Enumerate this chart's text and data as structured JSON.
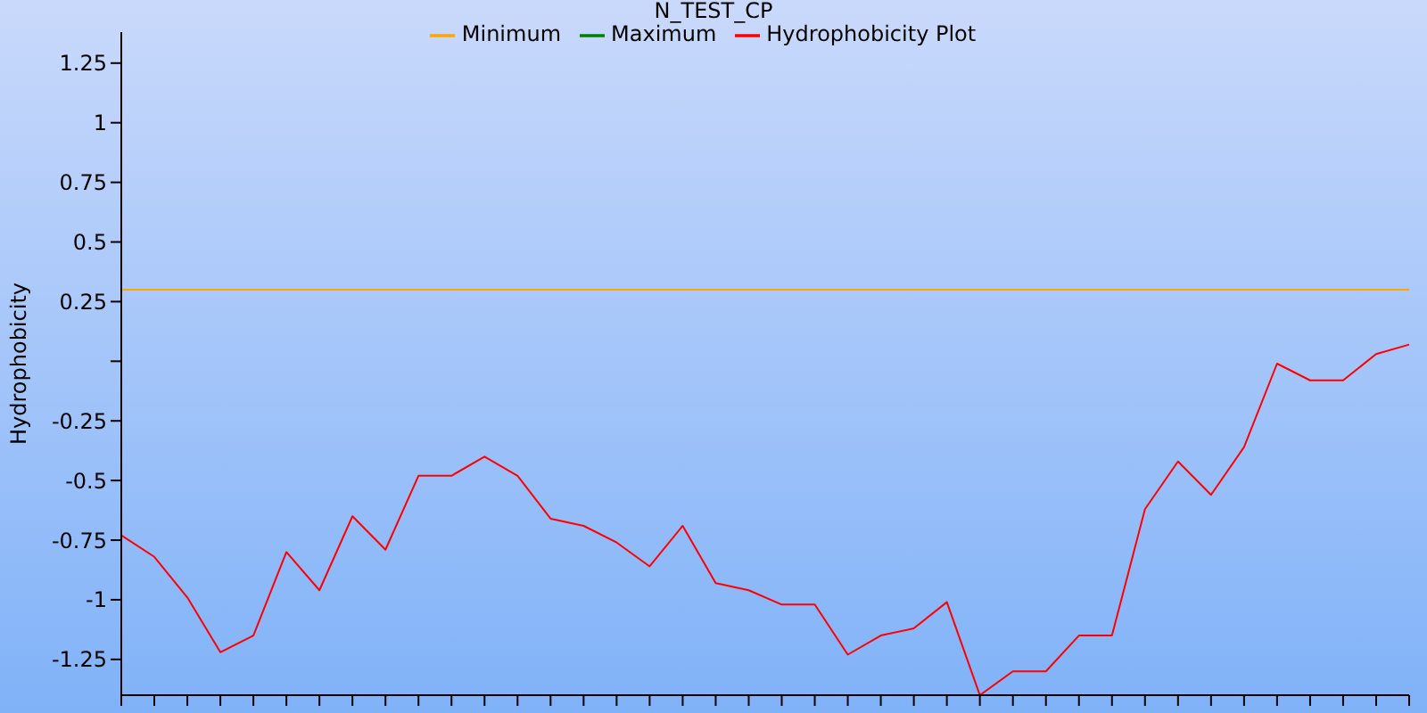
{
  "chart_data": {
    "type": "line",
    "title": "N_TEST_CP",
    "ylabel": "Hydrophobicity",
    "categories": [
      null,
      null,
      null,
      null,
      null,
      null,
      null,
      null,
      null,
      null,
      null,
      null,
      null,
      null,
      null,
      null,
      null,
      null,
      null,
      null,
      null,
      null,
      null,
      null,
      null,
      null,
      null,
      null,
      null,
      null,
      null,
      null,
      null,
      null,
      null,
      null,
      null,
      null,
      null,
      null
    ],
    "series": [
      {
        "name": "Minimum",
        "color": "#ffa500",
        "values": [
          0.3,
          0.3,
          0.3,
          0.3,
          0.3,
          0.3,
          0.3,
          0.3,
          0.3,
          0.3,
          0.3,
          0.3,
          0.3,
          0.3,
          0.3,
          0.3,
          0.3,
          0.3,
          0.3,
          0.3,
          0.3,
          0.3,
          0.3,
          0.3,
          0.3,
          0.3,
          0.3,
          0.3,
          0.3,
          0.3,
          0.3,
          0.3,
          0.3,
          0.3,
          0.3,
          0.3,
          0.3,
          0.3,
          0.3,
          0.3
        ]
      },
      {
        "name": "Maximum",
        "color": "#008000",
        "values": [
          null,
          null,
          null,
          null,
          null,
          null,
          null,
          null,
          null,
          null,
          null,
          null,
          null,
          null,
          null,
          null,
          null,
          null,
          null,
          null,
          null,
          null,
          null,
          null,
          null,
          null,
          null,
          null,
          null,
          null,
          null,
          null,
          null,
          null,
          null,
          null,
          null,
          null,
          null,
          null
        ]
      },
      {
        "name": "Hydrophobicity Plot",
        "color": "#ff0000",
        "values": [
          -0.73,
          -0.82,
          -0.99,
          -1.22,
          -1.15,
          -0.8,
          -0.96,
          -0.65,
          -0.79,
          -0.48,
          -0.48,
          -0.4,
          -0.48,
          -0.66,
          -0.69,
          -0.76,
          -0.86,
          -0.69,
          -0.93,
          -0.96,
          -1.02,
          -1.02,
          -1.23,
          -1.15,
          -1.12,
          -1.01,
          -1.4,
          -1.3,
          -1.3,
          -1.15,
          -1.15,
          -0.62,
          -0.42,
          -0.56,
          -0.36,
          -0.01,
          -0.08,
          -0.08,
          0.03,
          0.07
        ]
      }
    ],
    "ylim": [
      -1.4,
      1.38
    ],
    "yticks": [
      -1.25,
      -1,
      -0.75,
      -0.5,
      -0.25,
      {
        "value": 0,
        "label": null
      },
      0.25,
      0.5,
      0.75,
      1,
      1.25
    ],
    "tick_labels": "y",
    "grid": false,
    "legend": "top",
    "marker": "none",
    "line_style": "solid"
  }
}
